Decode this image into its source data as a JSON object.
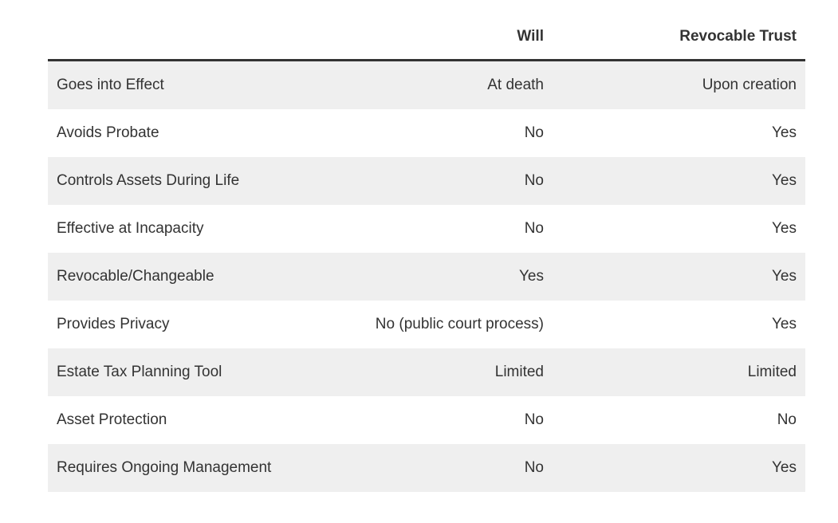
{
  "table": {
    "headers": [
      "",
      "Will",
      "Revocable Trust"
    ],
    "rows": [
      {
        "label": "Goes into Effect",
        "will": "At death",
        "trust": "Upon creation"
      },
      {
        "label": "Avoids Probate",
        "will": "No",
        "trust": "Yes"
      },
      {
        "label": "Controls Assets During Life",
        "will": "No",
        "trust": "Yes"
      },
      {
        "label": "Effective at Incapacity",
        "will": "No",
        "trust": "Yes"
      },
      {
        "label": "Revocable/Changeable",
        "will": "Yes",
        "trust": "Yes"
      },
      {
        "label": "Provides Privacy",
        "will": "No (public court process)",
        "trust": "Yes"
      },
      {
        "label": "Estate Tax Planning Tool",
        "will": "Limited",
        "trust": "Limited"
      },
      {
        "label": "Asset Protection",
        "will": "No",
        "trust": "No"
      },
      {
        "label": "Requires Ongoing Management",
        "will": "No",
        "trust": "Yes"
      }
    ]
  },
  "colors": {
    "text": "#333333",
    "stripe": "#efefef",
    "header_rule": "#333333"
  }
}
